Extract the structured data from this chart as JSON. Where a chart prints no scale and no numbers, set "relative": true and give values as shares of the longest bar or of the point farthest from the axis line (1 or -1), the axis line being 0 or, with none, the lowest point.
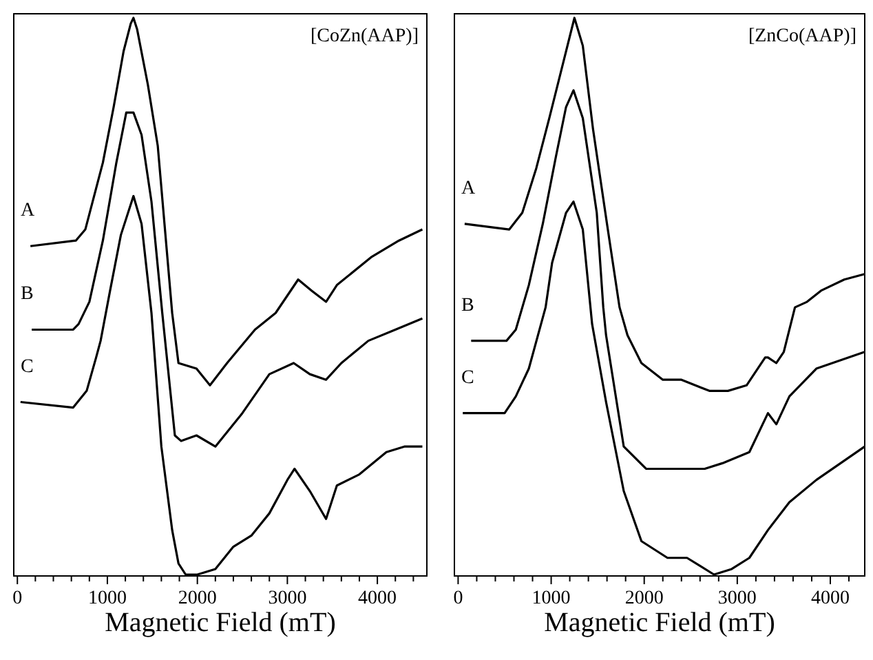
{
  "chart_data": [
    {
      "type": "line",
      "title": "[CoZn(AAP)]",
      "xlabel": "Magnetic Field (mT)",
      "relative": true,
      "legend": false,
      "tick_labels": "x",
      "xlim": [
        -40,
        4550
      ],
      "xticks": [
        0,
        {
          "value": 200,
          "label": null
        },
        {
          "value": 400,
          "label": null
        },
        {
          "value": 600,
          "label": null
        },
        {
          "value": 800,
          "label": null
        },
        1000,
        {
          "value": 1200,
          "label": null
        },
        {
          "value": 1400,
          "label": null
        },
        {
          "value": 1600,
          "label": null
        },
        {
          "value": 1800,
          "label": null
        },
        2000,
        {
          "value": 2200,
          "label": null
        },
        {
          "value": 2400,
          "label": null
        },
        {
          "value": 2600,
          "label": null
        },
        {
          "value": 2800,
          "label": null
        },
        3000,
        {
          "value": 3200,
          "label": null
        },
        {
          "value": 3400,
          "label": null
        },
        {
          "value": 3600,
          "label": null
        },
        {
          "value": 3800,
          "label": null
        },
        4000,
        {
          "value": 4200,
          "label": null
        },
        {
          "value": 4400,
          "label": null
        }
      ],
      "series": [
        {
          "name": "A",
          "color": "#000000",
          "x": [
            145,
            650,
            755,
            950,
            1070,
            1180,
            1260,
            1290,
            1330,
            1450,
            1560,
            1720,
            1790,
            1990,
            2140,
            2330,
            2640,
            2870,
            3120,
            3270,
            3430,
            3550,
            3930,
            4240,
            4500
          ],
          "values": [
            0.59,
            0.6,
            0.62,
            0.74,
            0.84,
            0.94,
            0.99,
            1.0,
            0.98,
            0.88,
            0.77,
            0.47,
            0.38,
            0.37,
            0.34,
            0.38,
            0.44,
            0.47,
            0.53,
            0.51,
            0.49,
            0.52,
            0.57,
            0.6,
            0.62
          ]
        },
        {
          "name": "B",
          "color": "#000000",
          "x": [
            160,
            620,
            680,
            800,
            950,
            1100,
            1210,
            1290,
            1380,
            1490,
            1610,
            1750,
            1820,
            1990,
            2200,
            2500,
            2800,
            3070,
            3250,
            3430,
            3600,
            3900,
            4200,
            4500
          ],
          "values": [
            0.44,
            0.44,
            0.45,
            0.49,
            0.6,
            0.74,
            0.83,
            0.83,
            0.79,
            0.67,
            0.47,
            0.25,
            0.24,
            0.25,
            0.23,
            0.29,
            0.36,
            0.38,
            0.36,
            0.35,
            0.38,
            0.42,
            0.44,
            0.46
          ]
        },
        {
          "name": "C",
          "color": "#000000",
          "x": [
            35,
            620,
            770,
            875,
            925,
            1030,
            1150,
            1290,
            1380,
            1490,
            1600,
            1720,
            1790,
            1870,
            2000,
            2200,
            2400,
            2600,
            2800,
            3000,
            3080,
            3250,
            3430,
            3550,
            3800,
            4100,
            4300,
            4500
          ],
          "values": [
            0.31,
            0.3,
            0.33,
            0.39,
            0.42,
            0.51,
            0.61,
            0.68,
            0.63,
            0.47,
            0.23,
            0.08,
            0.02,
            0.0,
            0.0,
            0.01,
            0.05,
            0.07,
            0.11,
            0.17,
            0.19,
            0.15,
            0.1,
            0.16,
            0.18,
            0.22,
            0.23,
            0.23
          ]
        }
      ]
    },
    {
      "type": "line",
      "title": "[ZnCo(AAP)]",
      "xlabel": "Magnetic Field (mT)",
      "relative": true,
      "legend": false,
      "tick_labels": "x",
      "xlim": [
        -40,
        4370
      ],
      "xticks": [
        0,
        {
          "value": 200,
          "label": null
        },
        {
          "value": 400,
          "label": null
        },
        {
          "value": 600,
          "label": null
        },
        {
          "value": 800,
          "label": null
        },
        1000,
        {
          "value": 1200,
          "label": null
        },
        {
          "value": 1400,
          "label": null
        },
        {
          "value": 1600,
          "label": null
        },
        {
          "value": 1800,
          "label": null
        },
        2000,
        {
          "value": 2200,
          "label": null
        },
        {
          "value": 2400,
          "label": null
        },
        {
          "value": 2600,
          "label": null
        },
        {
          "value": 2800,
          "label": null
        },
        3000,
        {
          "value": 3200,
          "label": null
        },
        {
          "value": 3400,
          "label": null
        },
        {
          "value": 3600,
          "label": null
        },
        {
          "value": 3800,
          "label": null
        },
        4000,
        {
          "value": 4200,
          "label": null
        }
      ],
      "series": [
        {
          "name": "A",
          "color": "#000000",
          "x": [
            70,
            550,
            690,
            840,
            980,
            1130,
            1250,
            1340,
            1450,
            1600,
            1735,
            1820,
            1970,
            2200,
            2400,
            2700,
            2900,
            3100,
            3300,
            3330,
            3420,
            3500,
            3620,
            3750,
            3900,
            4150,
            4370
          ],
          "values": [
            0.63,
            0.62,
            0.65,
            0.73,
            0.82,
            0.92,
            1.0,
            0.95,
            0.8,
            0.63,
            0.48,
            0.43,
            0.38,
            0.35,
            0.35,
            0.33,
            0.33,
            0.34,
            0.39,
            0.39,
            0.38,
            0.4,
            0.48,
            0.49,
            0.51,
            0.53,
            0.54
          ]
        },
        {
          "name": "B",
          "color": "#000000",
          "x": [
            140,
            520,
            620,
            760,
            910,
            1050,
            1160,
            1240,
            1340,
            1490,
            1560,
            1590,
            1780,
            2020,
            2170,
            2400,
            2650,
            2840,
            3130,
            3330,
            3420,
            3560,
            3850,
            4370
          ],
          "values": [
            0.42,
            0.42,
            0.44,
            0.52,
            0.63,
            0.75,
            0.84,
            0.87,
            0.82,
            0.65,
            0.48,
            0.43,
            0.23,
            0.19,
            0.19,
            0.19,
            0.19,
            0.2,
            0.22,
            0.29,
            0.27,
            0.32,
            0.37,
            0.4
          ]
        },
        {
          "name": "C",
          "color": "#000000",
          "x": [
            50,
            500,
            620,
            760,
            940,
            1010,
            1160,
            1240,
            1340,
            1440,
            1590,
            1780,
            1970,
            2250,
            2460,
            2750,
            2940,
            3130,
            3330,
            3560,
            3850,
            4370
          ],
          "values": [
            0.29,
            0.29,
            0.32,
            0.37,
            0.48,
            0.56,
            0.65,
            0.67,
            0.62,
            0.45,
            0.31,
            0.15,
            0.06,
            0.03,
            0.03,
            0.0,
            0.01,
            0.03,
            0.08,
            0.13,
            0.17,
            0.23
          ]
        }
      ]
    }
  ]
}
